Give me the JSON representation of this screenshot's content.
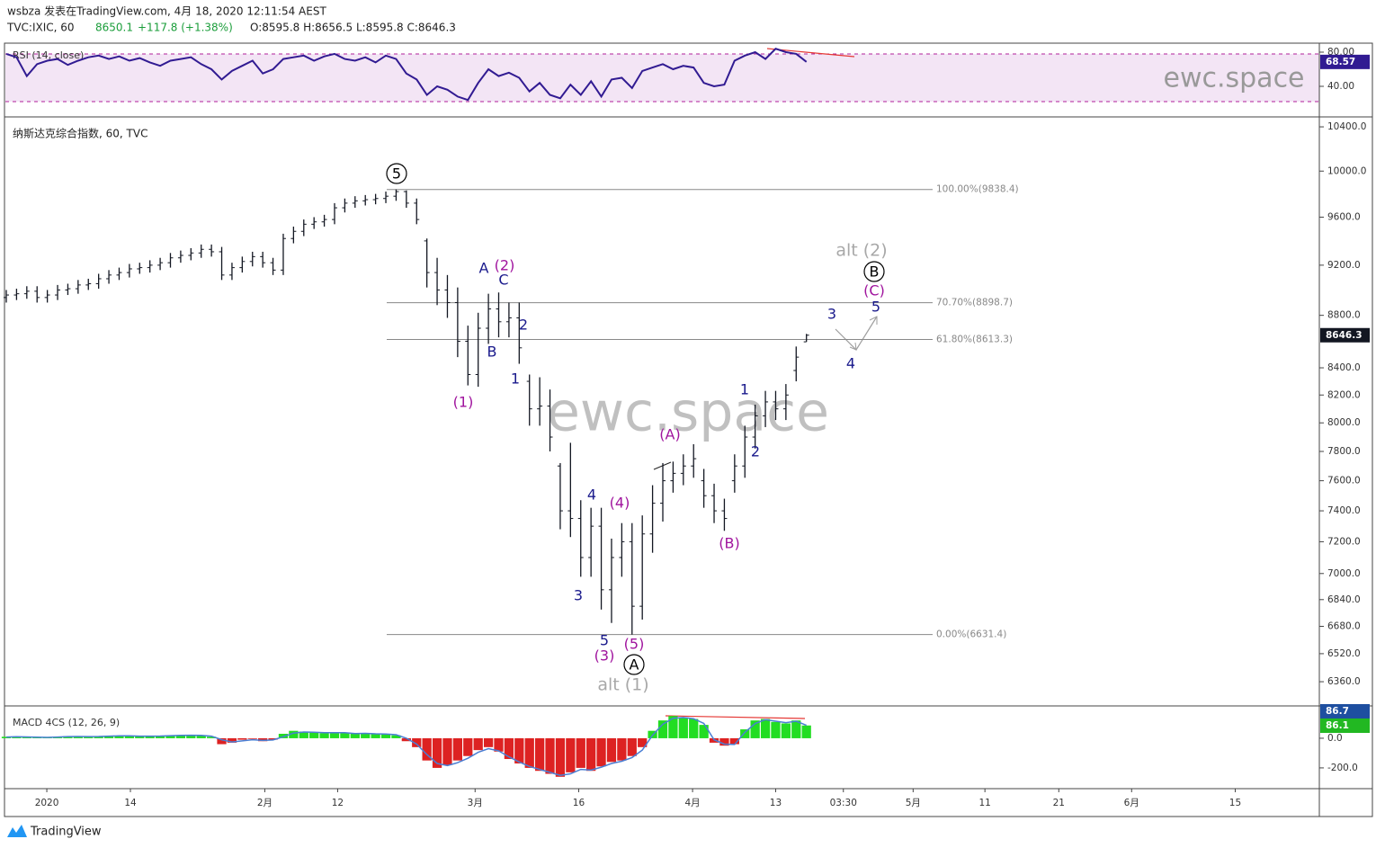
{
  "header": {
    "line1": "wsbza 发表在TradingView.com, 4月 18, 2020 12:11:54 AEST",
    "symbol": "TVC:IXIC, 60",
    "last": "8650.1",
    "change": "+117.8 (+1.38%)",
    "ohlc": "O:8595.8 H:8656.5 L:8595.8 C:8646.3"
  },
  "watermark": "ewc.space",
  "footer": {
    "brand": "TradingView"
  },
  "chart_data": [
    {
      "type": "line",
      "title": "RSI (14, close)",
      "color": "#311b92",
      "values": [
        78,
        74,
        52,
        66,
        70,
        72,
        65,
        70,
        74,
        76,
        72,
        75,
        70,
        73,
        68,
        64,
        70,
        72,
        74,
        66,
        60,
        48,
        58,
        64,
        70,
        55,
        60,
        72,
        74,
        76,
        70,
        75,
        78,
        72,
        70,
        74,
        68,
        76,
        72,
        55,
        48,
        30,
        40,
        36,
        28,
        24,
        44,
        60,
        52,
        56,
        50,
        34,
        44,
        30,
        26,
        42,
        30,
        46,
        28,
        48,
        50,
        38,
        58,
        62,
        66,
        60,
        64,
        62,
        44,
        40,
        42,
        70,
        76,
        80,
        72,
        84,
        80,
        78,
        68.57
      ],
      "ylim": [
        9.5,
        88.4
      ],
      "yticks": [
        {
          "value": 80,
          "label": "80.00"
        },
        {
          "value": 40,
          "label": "40.00"
        }
      ]
    },
    {
      "type": "ohlc",
      "title": "纳斯达克综合指数, 60, TVC",
      "color": "#131722",
      "log": true,
      "open": [
        8940,
        8960,
        8970,
        8990,
        8940,
        8960,
        9000,
        9010,
        9040,
        9050,
        9090,
        9120,
        9140,
        9170,
        9180,
        9200,
        9220,
        9260,
        9280,
        9300,
        9330,
        9310,
        9120,
        9180,
        9230,
        9270,
        9220,
        9160,
        9420,
        9480,
        9540,
        9560,
        9580,
        9680,
        9720,
        9740,
        9750,
        9760,
        9780,
        9820,
        9720,
        9400,
        9140,
        9000,
        8900,
        8600,
        8350,
        8700,
        8850,
        8750,
        8780,
        8300,
        8100,
        8120,
        7700,
        7400,
        7350,
        7100,
        7300,
        6900,
        7100,
        7200,
        6800,
        7250,
        7450,
        7600,
        7650,
        7700,
        7600,
        7500,
        7400,
        7600,
        7700,
        7900,
        8050,
        8150,
        8100,
        8380,
        8595.8
      ],
      "high": [
        9000,
        9010,
        9030,
        9030,
        9000,
        9040,
        9050,
        9080,
        9090,
        9130,
        9160,
        9180,
        9210,
        9220,
        9240,
        9260,
        9300,
        9320,
        9340,
        9370,
        9370,
        9350,
        9220,
        9270,
        9310,
        9310,
        9260,
        9460,
        9520,
        9580,
        9600,
        9620,
        9720,
        9760,
        9780,
        9790,
        9800,
        9820,
        9838.4,
        9830,
        9760,
        9420,
        9260,
        9120,
        9020,
        8720,
        8820,
        8970,
        8980,
        8900,
        8900,
        8350,
        8330,
        8240,
        7720,
        7860,
        7470,
        7420,
        7420,
        7220,
        7320,
        7320,
        7370,
        7570,
        7720,
        7730,
        7780,
        7850,
        7680,
        7580,
        7480,
        7780,
        7980,
        8130,
        8230,
        8230,
        8280,
        8560,
        8656.5
      ],
      "low": [
        8900,
        8920,
        8930,
        8900,
        8900,
        8920,
        8960,
        8970,
        9000,
        9010,
        9050,
        9080,
        9100,
        9130,
        9140,
        9160,
        9180,
        9220,
        9240,
        9260,
        9270,
        9080,
        9080,
        9140,
        9190,
        9180,
        9120,
        9120,
        9380,
        9440,
        9500,
        9520,
        9540,
        9640,
        9680,
        9700,
        9710,
        9720,
        9740,
        9680,
        9540,
        9020,
        8880,
        8780,
        8480,
        8270,
        8260,
        8580,
        8630,
        8630,
        8430,
        7980,
        7980,
        7800,
        7280,
        7230,
        6980,
        6980,
        6780,
        6700,
        6980,
        6631.4,
        6720,
        7130,
        7330,
        7520,
        7570,
        7620,
        7420,
        7320,
        7270,
        7520,
        7620,
        7820,
        7970,
        8020,
        8020,
        8300,
        8595.8
      ],
      "close": [
        8960,
        8970,
        8990,
        8940,
        8960,
        9000,
        9010,
        9040,
        9050,
        9090,
        9120,
        9140,
        9170,
        9180,
        9200,
        9220,
        9260,
        9280,
        9300,
        9330,
        9310,
        9120,
        9180,
        9230,
        9270,
        9220,
        9160,
        9420,
        9480,
        9540,
        9560,
        9580,
        9680,
        9720,
        9740,
        9750,
        9760,
        9780,
        9820,
        9720,
        9580,
        9140,
        9000,
        8900,
        8600,
        8350,
        8700,
        8850,
        8750,
        8780,
        8550,
        8100,
        8120,
        7900,
        7400,
        7350,
        7100,
        7300,
        6900,
        7100,
        7200,
        6800,
        7250,
        7450,
        7600,
        7650,
        7700,
        7750,
        7500,
        7400,
        7350,
        7700,
        7900,
        8050,
        8150,
        8100,
        8200,
        8480,
        8646.3
      ],
      "ylim": [
        6225,
        10492
      ],
      "yticks": [
        {
          "value": 10400,
          "label": "10400.0"
        },
        {
          "value": 10000,
          "label": "10000.0"
        },
        {
          "value": 9600,
          "label": "9600.0"
        },
        {
          "value": 9200,
          "label": "9200.0"
        },
        {
          "value": 8800,
          "label": "8800.0"
        },
        {
          "value": 8400,
          "label": "8400.0"
        },
        {
          "value": 8200,
          "label": "8200.0"
        },
        {
          "value": 8000,
          "label": "8000.0"
        },
        {
          "value": 7800,
          "label": "7800.0"
        },
        {
          "value": 7600,
          "label": "7600.0"
        },
        {
          "value": 7400,
          "label": "7400.0"
        },
        {
          "value": 7200,
          "label": "7200.0"
        },
        {
          "value": 7000,
          "label": "7000.0"
        },
        {
          "value": 6840,
          "label": "6840.0"
        },
        {
          "value": 6680,
          "label": "6680.0"
        },
        {
          "value": 6520,
          "label": "6520.0"
        },
        {
          "value": 6360,
          "label": "6360.0"
        }
      ],
      "xlim": [
        0,
        128
      ],
      "xticks": [
        {
          "value": 3.95,
          "label": "2020"
        },
        {
          "value": 12.1,
          "label": "14"
        },
        {
          "value": 25.2,
          "label": "2月"
        },
        {
          "value": 32.3,
          "label": "12"
        },
        {
          "value": 45.7,
          "label": "3月"
        },
        {
          "value": 55.8,
          "label": "16"
        },
        {
          "value": 66.9,
          "label": "4月"
        },
        {
          "value": 75,
          "label": "13"
        },
        {
          "value": 81.6,
          "label": "03:30"
        },
        {
          "value": 88.4,
          "label": "5月"
        },
        {
          "value": 95.4,
          "label": "11"
        },
        {
          "value": 102.6,
          "label": "21"
        },
        {
          "value": 109.7,
          "label": "6月"
        },
        {
          "value": 119.8,
          "label": "15"
        }
      ],
      "fib_color": "#888888",
      "fib_levels": [
        {
          "level": 9838.4,
          "label": "100.00%(9838.4)"
        },
        {
          "level": 8898.7,
          "label": "70.70%(8898.7)"
        },
        {
          "level": 8613.3,
          "label": "61.80%(8613.3)"
        },
        {
          "level": 6631.4,
          "label": "0.00%(6631.4)"
        }
      ],
      "annotations": [
        {
          "text": "5",
          "color": "#000000",
          "circled": true
        },
        {
          "text": "A",
          "color": "#1a1a8c"
        },
        {
          "text": "(2)",
          "color": "#a0149e"
        },
        {
          "text": "C",
          "color": "#1a1a8c"
        },
        {
          "text": "2",
          "color": "#1a1a8c"
        },
        {
          "text": "B",
          "color": "#1a1a8c"
        },
        {
          "text": "1",
          "color": "#1a1a8c"
        },
        {
          "text": "(1)",
          "color": "#a0149e"
        },
        {
          "text": "(A)",
          "color": "#a0149e"
        },
        {
          "text": "4",
          "color": "#1a1a8c"
        },
        {
          "text": "(4)",
          "color": "#a0149e"
        },
        {
          "text": "3",
          "color": "#1a1a8c"
        },
        {
          "text": "5",
          "color": "#1a1a8c"
        },
        {
          "text": "(5)",
          "color": "#a0149e"
        },
        {
          "text": "(3)",
          "color": "#a0149e"
        },
        {
          "text": "A",
          "color": "#000000",
          "circled": true
        },
        {
          "text": "alt (1)",
          "color": "#a8a8a8"
        },
        {
          "text": "1",
          "color": "#1a1a8c"
        },
        {
          "text": "2",
          "color": "#1a1a8c"
        },
        {
          "text": "(B)",
          "color": "#a0149e"
        },
        {
          "text": "3",
          "color": "#1a1a8c"
        },
        {
          "text": "4",
          "color": "#1a1a8c"
        },
        {
          "text": "5",
          "color": "#1a1a8c"
        },
        {
          "text": "(C)",
          "color": "#a0149e"
        },
        {
          "text": "B",
          "color": "#000000",
          "circled": true
        },
        {
          "text": "alt (2)",
          "color": "#a8a8a8"
        }
      ]
    },
    {
      "type": "macd",
      "title": "MACD 4CS (12, 26, 9)",
      "up_color": "#22dd22",
      "down_color": "#dd2222",
      "line_color": "#4a7fd4",
      "histogram": [
        10,
        12,
        8,
        5,
        6,
        10,
        14,
        12,
        10,
        14,
        16,
        18,
        15,
        12,
        14,
        16,
        18,
        20,
        22,
        18,
        10,
        -40,
        -30,
        -10,
        -5,
        -20,
        -10,
        30,
        50,
        45,
        40,
        35,
        40,
        38,
        30,
        34,
        28,
        30,
        20,
        -20,
        -60,
        -150,
        -200,
        -180,
        -150,
        -120,
        -80,
        -60,
        -90,
        -140,
        -170,
        -200,
        -220,
        -240,
        -260,
        -230,
        -200,
        -220,
        -190,
        -160,
        -150,
        -120,
        -60,
        50,
        120,
        150,
        140,
        130,
        90,
        -30,
        -50,
        -40,
        60,
        120,
        130,
        110,
        100,
        120,
        86.1
      ],
      "signal": [
        8,
        10,
        9,
        7,
        6,
        8,
        11,
        12,
        11,
        12,
        14,
        16,
        16,
        14,
        14,
        15,
        17,
        19,
        20,
        19,
        14,
        -10,
        -25,
        -18,
        -10,
        -15,
        -12,
        10,
        35,
        42,
        40,
        37,
        38,
        37,
        32,
        33,
        30,
        29,
        24,
        0,
        -40,
        -110,
        -170,
        -185,
        -165,
        -135,
        -95,
        -70,
        -85,
        -125,
        -160,
        -190,
        -210,
        -230,
        -250,
        -240,
        -210,
        -215,
        -195,
        -170,
        -155,
        -130,
        -80,
        20,
        95,
        135,
        140,
        132,
        100,
        -10,
        -40,
        -42,
        40,
        100,
        125,
        115,
        105,
        115,
        86.7
      ],
      "ylim": [
        -340,
        218
      ],
      "yticks": [
        {
          "value": 0,
          "label": "0.0"
        },
        {
          "value": -200,
          "label": "-200.0"
        }
      ]
    }
  ]
}
